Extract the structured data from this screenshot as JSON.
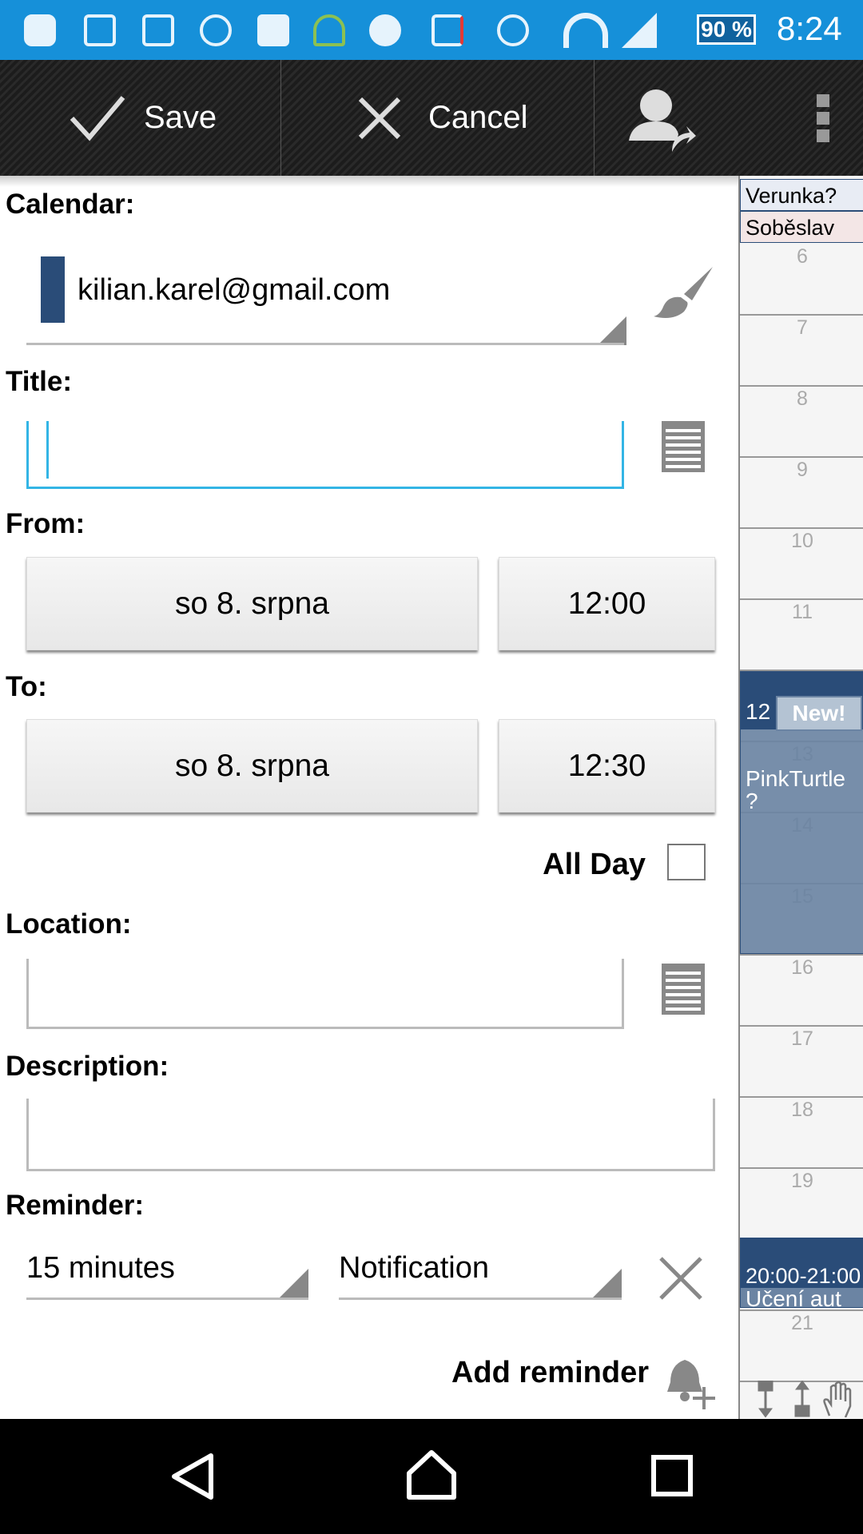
{
  "status_bar": {
    "battery": "90 %",
    "time": "8:24",
    "icons": [
      "chat-icon",
      "gmail-icon",
      "gallery-icon",
      "app-icon",
      "google-plus-icon",
      "android-icon",
      "cloud-upload-icon",
      "laptop-alert-icon",
      "alarm-icon",
      "wifi-icon",
      "signal-icon"
    ],
    "color": "#1690d9"
  },
  "action_bar": {
    "save_label": "Save",
    "cancel_label": "Cancel"
  },
  "form": {
    "calendar_label": "Calendar:",
    "calendar_value": "kilian.karel@gmail.com",
    "calendar_color": "#2a4c78",
    "title_label": "Title:",
    "title_value": "",
    "from_label": "From:",
    "from_date": "so 8. srpna",
    "from_time": "12:00",
    "to_label": "To:",
    "to_date": "so 8. srpna",
    "to_time": "12:30",
    "all_day_label": "All Day",
    "all_day_checked": false,
    "location_label": "Location:",
    "location_value": "",
    "description_label": "Description:",
    "description_value": "",
    "reminder_label": "Reminder:",
    "reminder_time": "15 minutes",
    "reminder_type": "Notification",
    "add_reminder_label": "Add reminder"
  },
  "day_view": {
    "all_day_events": [
      "Verunka?",
      "Soběslav"
    ],
    "hours": [
      "6",
      "7",
      "8",
      "9",
      "10",
      "11",
      "12",
      "13",
      "14",
      "15",
      "16",
      "17",
      "18",
      "19",
      "20",
      "21"
    ],
    "events": [
      {
        "time": "12",
        "badge": "New!",
        "title": "PinkTurtle ?"
      },
      {
        "time": "20:00-21:00",
        "title": "Učení aut"
      }
    ]
  }
}
